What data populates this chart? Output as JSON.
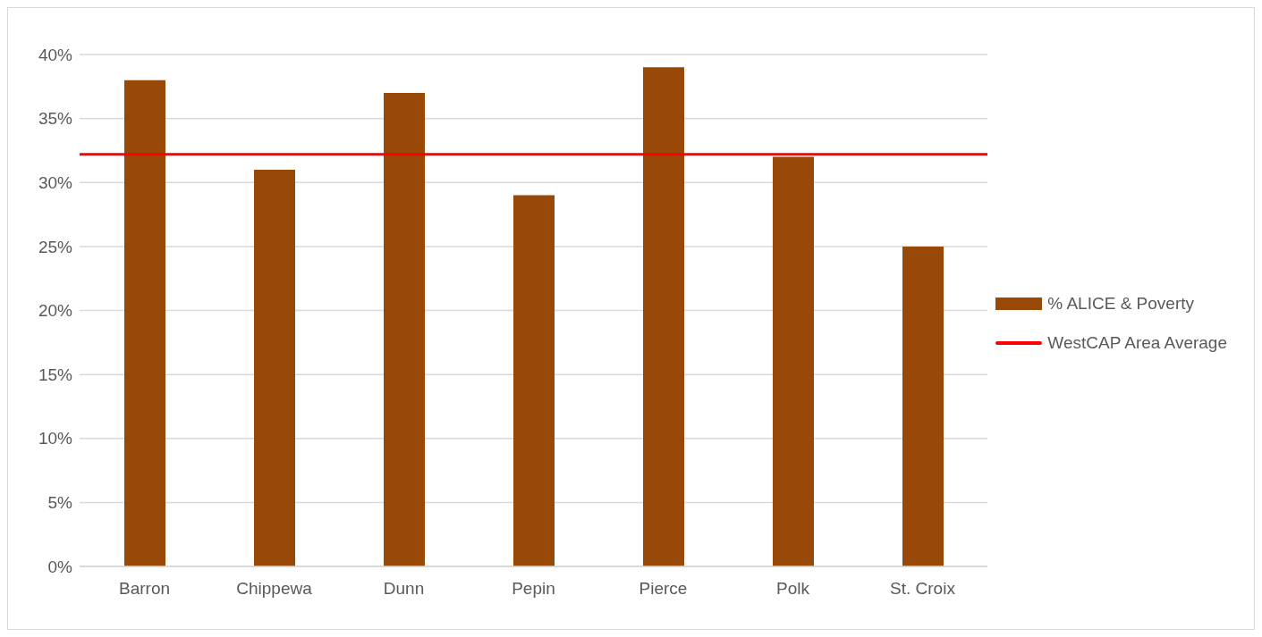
{
  "chart_data": {
    "type": "bar",
    "categories": [
      "Barron",
      "Chippewa",
      "Dunn",
      "Pepin",
      "Pierce",
      "Polk",
      "St. Croix"
    ],
    "series": [
      {
        "name": "% ALICE & Poverty",
        "color": "#984807",
        "values": [
          38,
          31,
          37,
          29,
          39,
          32,
          25
        ]
      }
    ],
    "ylim": [
      0,
      40
    ],
    "yticks": [
      {
        "value": 0,
        "label": "0%"
      },
      {
        "value": 5,
        "label": "5%"
      },
      {
        "value": 10,
        "label": "10%"
      },
      {
        "value": 15,
        "label": "15%"
      },
      {
        "value": 20,
        "label": "20%"
      },
      {
        "value": 25,
        "label": "25%"
      },
      {
        "value": 30,
        "label": "30%"
      },
      {
        "value": 35,
        "label": "35%"
      },
      {
        "value": 40,
        "label": "40%"
      }
    ],
    "ref_lines": [
      {
        "axis": "y",
        "value": 32.2,
        "label": "WestCAP Area Average",
        "color": "#ff0000",
        "line_style": "solid"
      }
    ],
    "grid": "y",
    "legend": "right"
  }
}
